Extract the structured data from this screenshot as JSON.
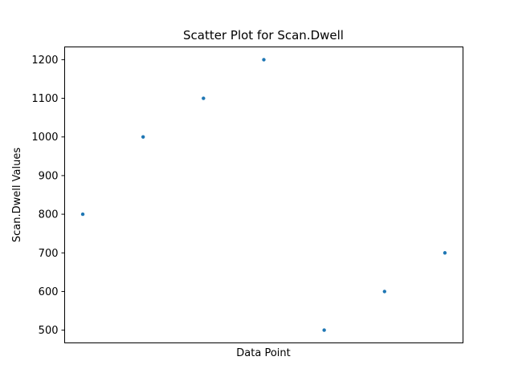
{
  "chart_data": {
    "type": "scatter",
    "title": "Scatter Plot for Scan.Dwell",
    "xlabel": "Data Point",
    "ylabel": "Scan.Dwell Values",
    "x": [
      1,
      2,
      3,
      4,
      5,
      6,
      7
    ],
    "values": [
      800,
      1000,
      1100,
      1200,
      500,
      600,
      700
    ],
    "xlim": [
      0.7,
      7.3
    ],
    "ylim": [
      467,
      1233
    ],
    "yticks": [
      500,
      600,
      700,
      800,
      900,
      1000,
      1100,
      1200
    ],
    "ytick_labels": [
      "500",
      "600",
      "700",
      "800",
      "900",
      "1000",
      "1100",
      "1200"
    ],
    "xticks_shown": false,
    "grid": false,
    "legend": "none",
    "marker_color": "#1f77b4"
  }
}
